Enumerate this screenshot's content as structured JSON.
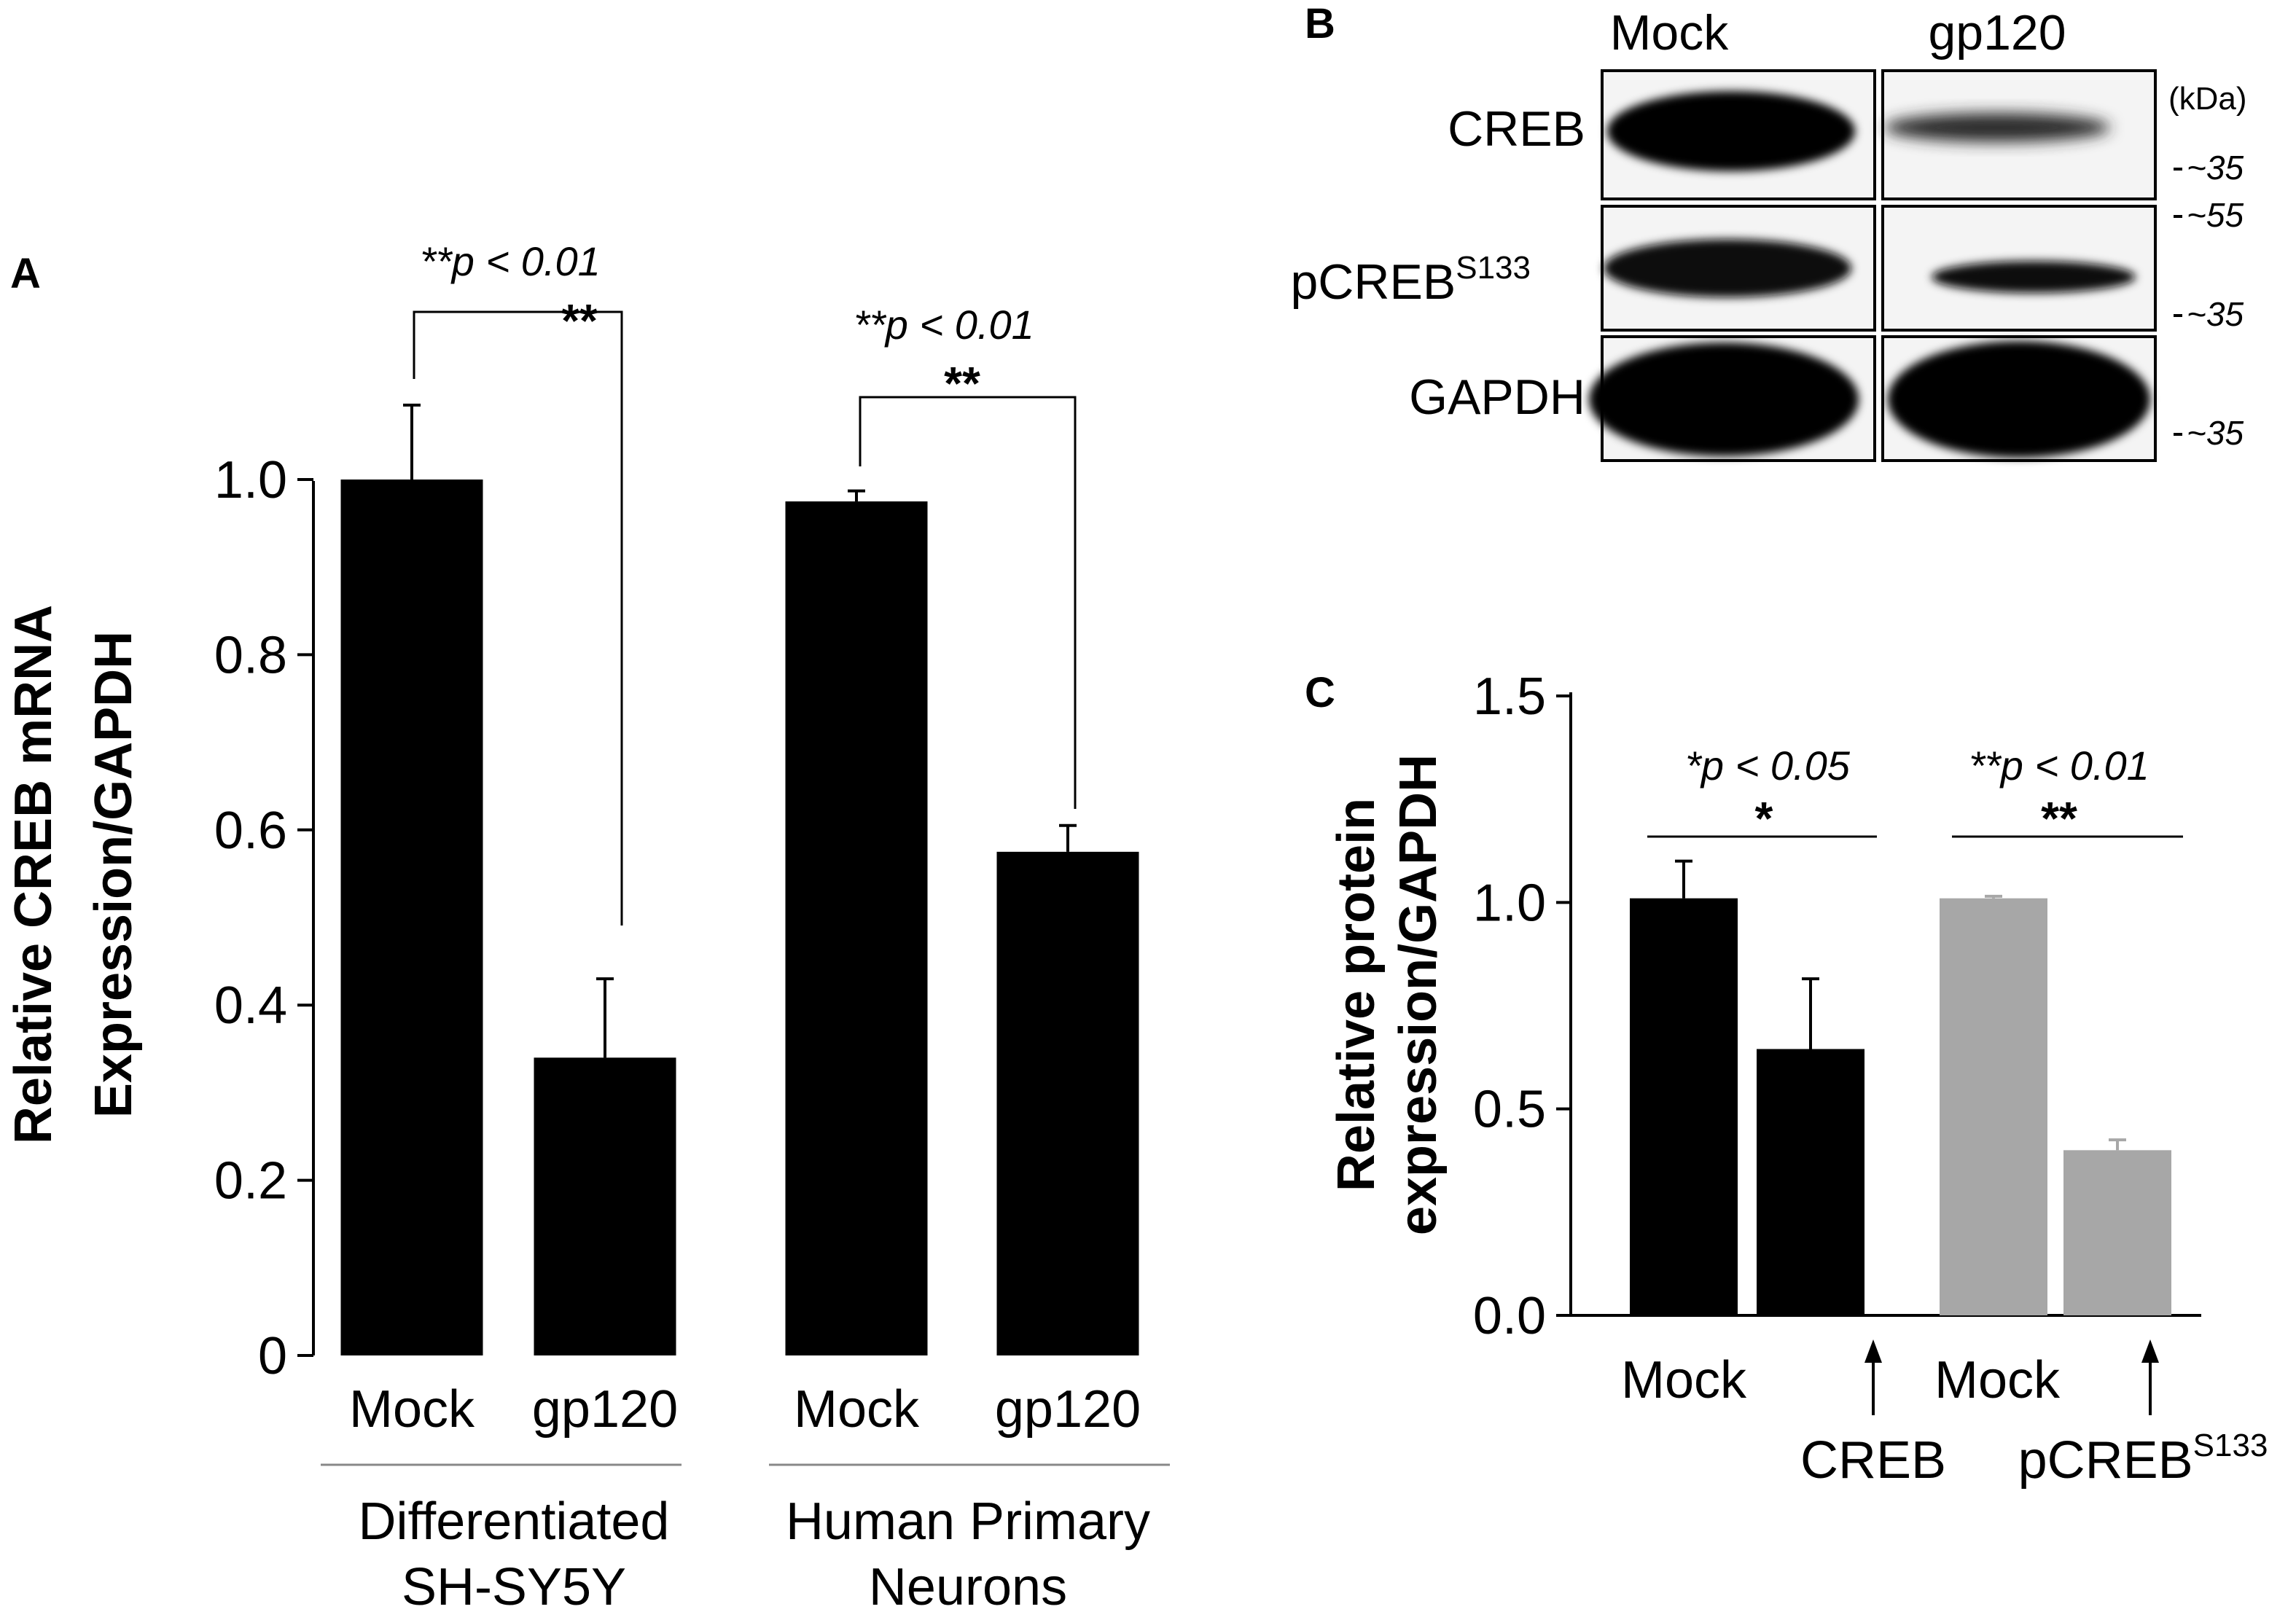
{
  "panel_labels": {
    "a": "A",
    "b": "B",
    "c": "C"
  },
  "chart_data": [
    {
      "panel": "A",
      "type": "bar",
      "ylabel_line1": "Relative CREB mRNA",
      "ylabel_line2": "Expression/GAPDH",
      "ylim": [
        0,
        1.0
      ],
      "yticks": [
        "0",
        "0.2",
        "0.4",
        "0.6",
        "0.8",
        "1.0"
      ],
      "ytick_values": [
        0,
        0.2,
        0.4,
        0.6,
        0.8,
        1.0
      ],
      "categories": [
        "Mock",
        "gp120",
        "Mock",
        "gp120"
      ],
      "values": [
        1.0,
        0.34,
        0.975,
        0.575
      ],
      "errors": [
        0.085,
        0.09,
        0.012,
        0.03
      ],
      "bar_colors": [
        "#000000",
        "#000000",
        "#000000",
        "#000000"
      ],
      "groups": [
        {
          "line1": "Differentiated",
          "line2": "SH-SY5Y"
        },
        {
          "line1": "Human Primary",
          "line2": "Neurons"
        }
      ],
      "significance": [
        {
          "text": "**p < 0.01",
          "stars": "**"
        },
        {
          "text": "**p < 0.01",
          "stars": "**"
        }
      ],
      "grid": false
    },
    {
      "panel": "C",
      "type": "bar",
      "ylabel_line1": "Relative protein",
      "ylabel_line2": "expression/GAPDH",
      "ylim": [
        0,
        1.5
      ],
      "yticks": [
        "0.0",
        "0.5",
        "1.0",
        "1.5"
      ],
      "ytick_values": [
        0,
        0.5,
        1.0,
        1.5
      ],
      "categories": [
        "Mock",
        "",
        "Mock",
        ""
      ],
      "values": [
        1.01,
        0.645,
        1.01,
        0.4
      ],
      "errors": [
        0.09,
        0.17,
        0.005,
        0.025
      ],
      "bar_colors": [
        "#000000",
        "#000000",
        "#a7a7a7",
        "#a7a7a7"
      ],
      "arrow_labels": [
        {
          "main": "CREB",
          "sup": ""
        },
        {
          "main": "pCREB",
          "sup": "S133"
        }
      ],
      "significance": [
        {
          "text": "*p < 0.05",
          "stars": "*"
        },
        {
          "text": "**p < 0.01",
          "stars": "**"
        }
      ],
      "grid": false
    }
  ],
  "western_blot": {
    "columns": [
      "Mock",
      "gp120"
    ],
    "kda_label": "(kDa)",
    "rows": [
      {
        "label": "CREB",
        "sup": "",
        "markers": [
          "~35"
        ]
      },
      {
        "label": "pCREB",
        "sup": "S133",
        "markers": [
          "~55",
          "~35"
        ]
      },
      {
        "label": "GAPDH",
        "sup": "",
        "markers": [
          "~35"
        ]
      }
    ]
  }
}
